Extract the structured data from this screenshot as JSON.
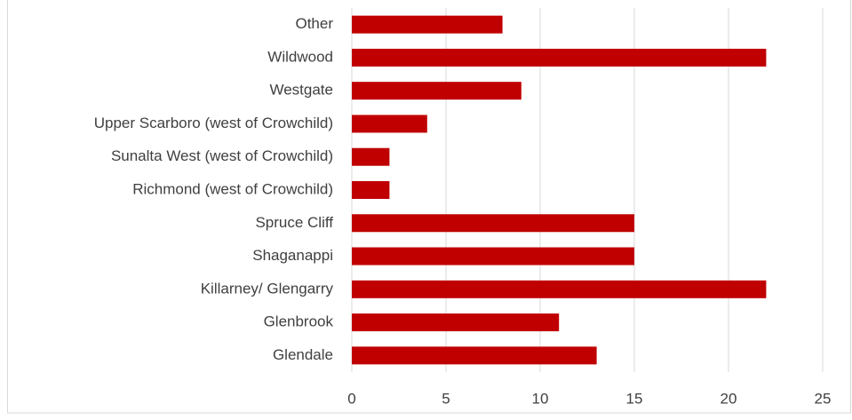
{
  "chart_data": {
    "type": "bar",
    "orientation": "horizontal",
    "categories": [
      "Other",
      "Wildwood",
      "Westgate",
      "Upper Scarboro (west of Crowchild)",
      "Sunalta West (west of Crowchild)",
      "Richmond (west of Crowchild)",
      "Spruce Cliff",
      "Shaganappi",
      "Killarney/ Glengarry",
      "Glenbrook",
      "Glendale"
    ],
    "values": [
      8,
      22,
      9,
      4,
      2,
      2,
      15,
      15,
      22,
      11,
      13
    ],
    "color": "#c00000",
    "xlim": [
      0,
      25
    ],
    "xticks": [
      0,
      5,
      10,
      15,
      20,
      25
    ],
    "grid": true
  }
}
